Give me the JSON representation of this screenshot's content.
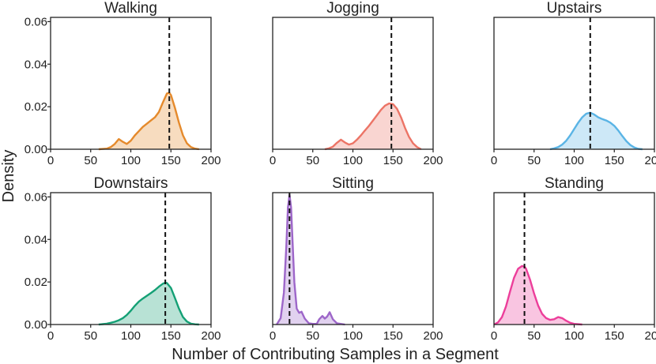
{
  "chart_data": {
    "type": "area",
    "ylabel": "Density",
    "xlabel": "Number of Contributing Samples in a Segment",
    "xlim": [
      0,
      200
    ],
    "ylim": [
      0,
      0.062
    ],
    "x_ticks": [
      0,
      50,
      100,
      150,
      200
    ],
    "x_tick_labels": [
      "0",
      "50",
      "100",
      "150",
      "200"
    ],
    "y_ticks": [
      0,
      0.02,
      0.04,
      0.06
    ],
    "y_tick_labels": [
      "0.00",
      "0.02",
      "0.04",
      "0.06"
    ],
    "panels": [
      {
        "title": "Walking",
        "color": "#e58a2c",
        "median": 148,
        "x": [
          60,
          70,
          75,
          80,
          85,
          90,
          95,
          100,
          105,
          110,
          115,
          120,
          125,
          130,
          135,
          140,
          145,
          148,
          150,
          155,
          160,
          165,
          170,
          175,
          180,
          185
        ],
        "y": [
          0,
          0.0003,
          0.001,
          0.0025,
          0.0048,
          0.0035,
          0.0025,
          0.004,
          0.0065,
          0.0085,
          0.0105,
          0.012,
          0.0135,
          0.015,
          0.0175,
          0.022,
          0.0262,
          0.0265,
          0.0255,
          0.0195,
          0.0125,
          0.0065,
          0.0028,
          0.001,
          0.0003,
          0
        ]
      },
      {
        "title": "Jogging",
        "color": "#ec7466",
        "median": 148,
        "x": [
          65,
          70,
          75,
          80,
          85,
          90,
          95,
          100,
          105,
          110,
          115,
          120,
          125,
          130,
          135,
          140,
          145,
          150,
          155,
          160,
          165,
          170,
          175,
          180,
          185
        ],
        "y": [
          0,
          0.0004,
          0.0012,
          0.003,
          0.0045,
          0.0032,
          0.0022,
          0.0028,
          0.0045,
          0.0065,
          0.0088,
          0.011,
          0.0135,
          0.016,
          0.0185,
          0.0205,
          0.0215,
          0.0212,
          0.019,
          0.015,
          0.01,
          0.0058,
          0.0028,
          0.001,
          0
        ]
      },
      {
        "title": "Upstairs",
        "color": "#5ab4e5",
        "median": 120,
        "x": [
          70,
          75,
          80,
          85,
          90,
          95,
          100,
          105,
          110,
          115,
          120,
          125,
          130,
          135,
          140,
          145,
          150,
          155,
          160,
          165,
          170,
          175,
          180,
          185
        ],
        "y": [
          0,
          0.0004,
          0.001,
          0.0022,
          0.004,
          0.0065,
          0.0095,
          0.0125,
          0.015,
          0.0167,
          0.0172,
          0.0163,
          0.015,
          0.0142,
          0.0135,
          0.0125,
          0.011,
          0.0088,
          0.0062,
          0.0038,
          0.002,
          0.0008,
          0.0002,
          0
        ]
      },
      {
        "title": "Downstairs",
        "color": "#14a075",
        "median": 143,
        "x": [
          60,
          65,
          70,
          75,
          80,
          85,
          90,
          95,
          100,
          105,
          110,
          115,
          120,
          125,
          130,
          135,
          140,
          143,
          145,
          150,
          155,
          160,
          165,
          170,
          175,
          180,
          185
        ],
        "y": [
          0,
          0.0002,
          0.0004,
          0.0008,
          0.0013,
          0.002,
          0.003,
          0.0045,
          0.0065,
          0.0088,
          0.0108,
          0.0122,
          0.0135,
          0.0148,
          0.0162,
          0.0178,
          0.0192,
          0.0197,
          0.0195,
          0.0172,
          0.0125,
          0.0075,
          0.0035,
          0.0014,
          0.0004,
          0.0001,
          0
        ]
      },
      {
        "title": "Sitting",
        "color": "#9d66c9",
        "median": 21,
        "x": [
          5,
          10,
          14,
          17,
          19,
          21,
          23,
          25,
          27,
          30,
          33,
          36,
          40,
          45,
          50,
          55,
          58,
          62,
          65,
          68,
          71,
          75,
          80,
          90
        ],
        "y": [
          0,
          0.003,
          0.015,
          0.037,
          0.055,
          0.061,
          0.055,
          0.037,
          0.02,
          0.0075,
          0.0055,
          0.006,
          0.0028,
          0.0006,
          0.0003,
          0.0003,
          0.0025,
          0.004,
          0.0028,
          0.0038,
          0.0058,
          0.0025,
          0.0006,
          0
        ]
      },
      {
        "title": "Standing",
        "color": "#ec3e9a",
        "median": 38,
        "x": [
          0,
          5,
          10,
          15,
          20,
          25,
          30,
          35,
          38,
          40,
          45,
          50,
          55,
          60,
          65,
          70,
          75,
          80,
          85,
          90,
          95,
          100,
          110
        ],
        "y": [
          0,
          0.001,
          0.0035,
          0.0085,
          0.0155,
          0.022,
          0.0262,
          0.0275,
          0.0272,
          0.0262,
          0.021,
          0.0145,
          0.009,
          0.005,
          0.003,
          0.0022,
          0.0025,
          0.0035,
          0.003,
          0.0018,
          0.0008,
          0.0003,
          0
        ]
      }
    ]
  }
}
